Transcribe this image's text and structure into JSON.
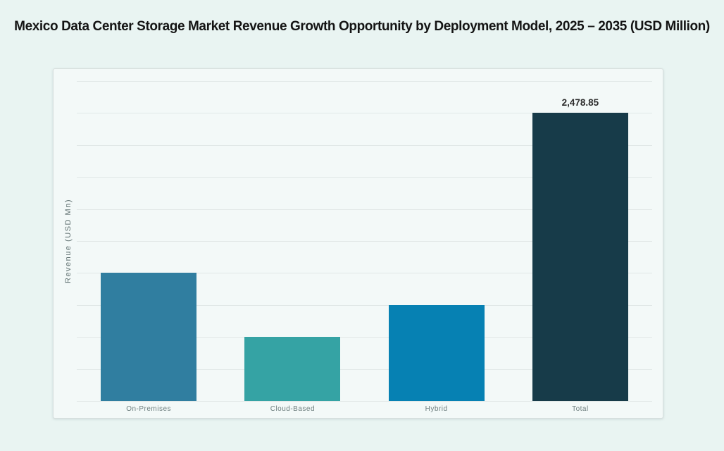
{
  "page": {
    "background": "#e9f4f2"
  },
  "title": "Mexico Data Center Storage Market Revenue Growth Opportunity by Deployment Model, 2025 – 2035 (USD Million)",
  "chart_data": {
    "type": "bar",
    "title": "Mexico Data Center Storage Market Revenue Growth Opportunity by Deployment Model, 2025 – 2035 (USD Million)",
    "xlabel": "",
    "ylabel": "Revenue (USD Mn)",
    "categories": [
      "On-Premises",
      "Cloud-Based",
      "Hybrid",
      "Total"
    ],
    "values": [
      1101.71,
      550.86,
      826.28,
      2478.85
    ],
    "point_labels": [
      "",
      "",
      "",
      "2,478.85"
    ],
    "colors": [
      "#307ea0",
      "#35a3a4",
      "#0681b3",
      "#173b49"
    ],
    "ylim": [
      0,
      2754.28
    ],
    "gridline_divisions": 10,
    "grid": true,
    "legend": false,
    "y_tick_labels_visible": false
  }
}
